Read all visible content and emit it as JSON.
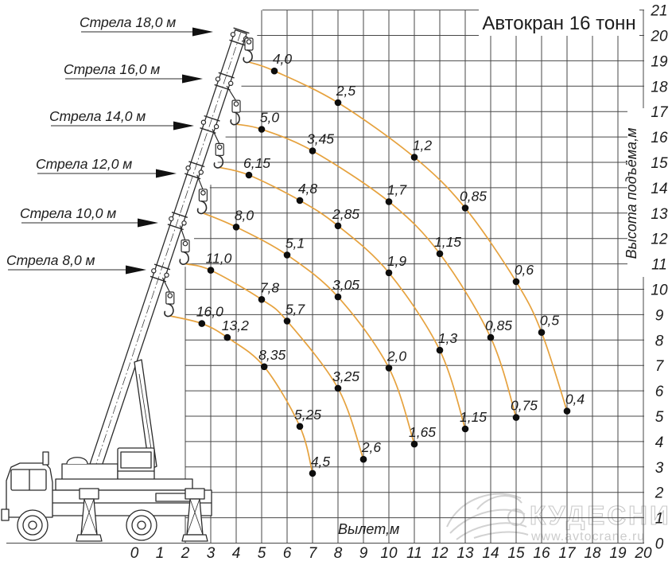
{
  "title": {
    "text": "Автокран 16 тонн",
    "color": "#e52a1a"
  },
  "axes": {
    "x_label": "Вылет,м",
    "y_label": "Высота подъёма,м",
    "x_ticks": [
      0,
      1,
      2,
      3,
      4,
      5,
      6,
      7,
      8,
      9,
      10,
      11,
      12,
      13,
      14,
      15,
      16,
      17,
      18,
      19,
      20
    ],
    "y_ticks": [
      0,
      1,
      2,
      3,
      4,
      5,
      6,
      7,
      8,
      9,
      10,
      11,
      12,
      13,
      14,
      15,
      16,
      17,
      18,
      19,
      20,
      21
    ]
  },
  "watermark": {
    "brand": "КУДЕСНИК",
    "url": "www.avtocrane.ru"
  },
  "chart_data": {
    "type": "line",
    "title": "Автокран 16 тонн",
    "xlabel": "Вылет,м",
    "ylabel": "Высота подъёма,м",
    "xlim": [
      0,
      20
    ],
    "ylim": [
      0,
      21
    ],
    "grid": true,
    "curve_color": "#e6a23e",
    "series": [
      {
        "name": "Стрела 18,0 м",
        "boom_m": 18.0,
        "start": {
          "x": 4.5,
          "y": 18.95
        },
        "points": [
          {
            "x": 5.5,
            "y": 18.6,
            "load": "4,0",
            "load_t": 4.0
          },
          {
            "x": 8.0,
            "y": 17.35,
            "load": "2,5",
            "load_t": 2.5
          },
          {
            "x": 11.0,
            "y": 15.2,
            "load": "1,2",
            "load_t": 1.2
          },
          {
            "x": 13.0,
            "y": 13.2,
            "load": "0,85",
            "load_t": 0.85
          },
          {
            "x": 15.0,
            "y": 10.3,
            "load": "0,6",
            "load_t": 0.6
          },
          {
            "x": 16.0,
            "y": 8.3,
            "load": "0,5",
            "load_t": 0.5
          },
          {
            "x": 17.0,
            "y": 5.2,
            "load": "0,4",
            "load_t": 0.4
          }
        ]
      },
      {
        "name": "Стрела 16,0 м",
        "boom_m": 16.0,
        "start": {
          "x": 4.0,
          "y": 16.5
        },
        "points": [
          {
            "x": 5.0,
            "y": 16.3,
            "load": "5,0",
            "load_t": 5.0
          },
          {
            "x": 7.0,
            "y": 15.45,
            "load": "3,45",
            "load_t": 3.45
          },
          {
            "x": 10.0,
            "y": 13.45,
            "load": "1,7",
            "load_t": 1.7
          },
          {
            "x": 12.0,
            "y": 11.4,
            "load": "1,15",
            "load_t": 1.15
          },
          {
            "x": 14.0,
            "y": 8.1,
            "load": "0,85",
            "load_t": 0.85
          },
          {
            "x": 15.0,
            "y": 4.95,
            "load": "0,75",
            "load_t": 0.75
          }
        ]
      },
      {
        "name": "Стрела 14,0 м",
        "boom_m": 14.0,
        "start": {
          "x": 3.35,
          "y": 14.8
        },
        "points": [
          {
            "x": 4.5,
            "y": 14.5,
            "load": "6,15",
            "load_t": 6.15
          },
          {
            "x": 6.5,
            "y": 13.5,
            "load": "4,8",
            "load_t": 4.8
          },
          {
            "x": 8.0,
            "y": 12.5,
            "load": "2,85",
            "load_t": 2.85
          },
          {
            "x": 10.0,
            "y": 10.65,
            "load": "1,9",
            "load_t": 1.9
          },
          {
            "x": 12.0,
            "y": 7.6,
            "load": "1,3",
            "load_t": 1.3
          },
          {
            "x": 13.0,
            "y": 4.5,
            "load": "1,15",
            "load_t": 1.15
          }
        ]
      },
      {
        "name": "Стрела 12,0 м",
        "boom_m": 12.0,
        "start": {
          "x": 2.7,
          "y": 13.0
        },
        "points": [
          {
            "x": 4.0,
            "y": 12.45,
            "load": "8,0",
            "load_t": 8.0
          },
          {
            "x": 6.0,
            "y": 11.35,
            "load": "5,1",
            "load_t": 5.1
          },
          {
            "x": 8.0,
            "y": 9.7,
            "load": "3,05",
            "load_t": 3.05
          },
          {
            "x": 10.0,
            "y": 6.9,
            "load": "2,0",
            "load_t": 2.0
          },
          {
            "x": 11.0,
            "y": 3.9,
            "load": "1,65",
            "load_t": 1.65
          }
        ]
      },
      {
        "name": "Стрела 10,0 м",
        "boom_m": 10.0,
        "start": {
          "x": 2.0,
          "y": 11.0
        },
        "points": [
          {
            "x": 3.0,
            "y": 10.75,
            "load": "11,0",
            "load_t": 11.0
          },
          {
            "x": 5.0,
            "y": 9.6,
            "load": "7,8",
            "load_t": 7.8
          },
          {
            "x": 6.0,
            "y": 8.75,
            "load": "5,7",
            "load_t": 5.7
          },
          {
            "x": 8.0,
            "y": 6.1,
            "load": "3,25",
            "load_t": 3.25
          },
          {
            "x": 9.0,
            "y": 3.3,
            "load": "2,6",
            "load_t": 2.6
          }
        ]
      },
      {
        "name": "Стрела 8,0 м",
        "boom_m": 8.0,
        "start": {
          "x": 1.4,
          "y": 8.95
        },
        "points": [
          {
            "x": 2.65,
            "y": 8.65,
            "load": "16,0",
            "load_t": 16.0
          },
          {
            "x": 3.65,
            "y": 8.1,
            "load": "13,2",
            "load_t": 13.2
          },
          {
            "x": 5.1,
            "y": 6.95,
            "load": "8,35",
            "load_t": 8.35
          },
          {
            "x": 6.5,
            "y": 4.6,
            "load": "5,25",
            "load_t": 5.25
          },
          {
            "x": 7.0,
            "y": 2.75,
            "load": "4,5",
            "load_t": 4.5
          }
        ]
      }
    ]
  }
}
